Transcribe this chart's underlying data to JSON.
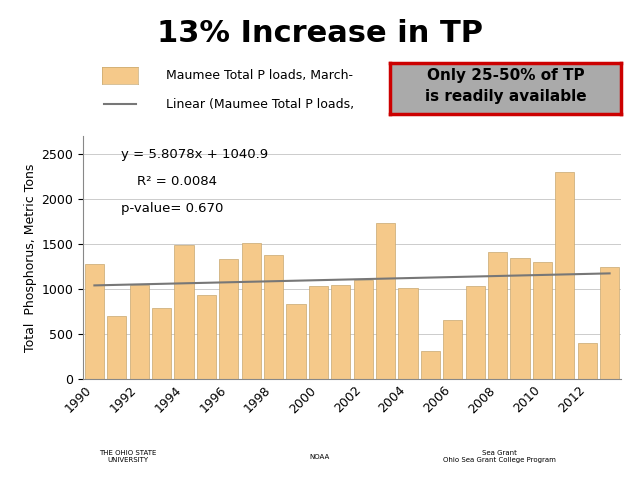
{
  "title": "13% Increase in TP",
  "ylabel": "Total  Phosphorus, Metric Tons",
  "bar_color": "#F5C98A",
  "bar_edgecolor": "#C8A870",
  "years": [
    1990,
    1991,
    1992,
    1993,
    1994,
    1995,
    1996,
    1997,
    1998,
    1999,
    2000,
    2001,
    2002,
    2003,
    2004,
    2005,
    2006,
    2007,
    2008,
    2009,
    2010,
    2011,
    2012,
    2013
  ],
  "values": [
    1280,
    700,
    1040,
    790,
    1490,
    930,
    1330,
    1510,
    1380,
    830,
    1030,
    1050,
    1100,
    1730,
    1010,
    310,
    660,
    1030,
    1410,
    1350,
    1300,
    2300,
    400,
    1250
  ],
  "trend_label": "Linear (Maumee Total P loads,",
  "bar_label": "Maumee Total P loads, March-",
  "equation": "y = 5.8078x + 1040.9",
  "r2": "R² = 0.0084",
  "pvalue": "p-value= 0.670",
  "annotation_text": "Only 25-50% of TP\nis readily available",
  "annotation_bg": "#AAAAAA",
  "annotation_border": "#CC0000",
  "ylim": [
    0,
    2700
  ],
  "yticks": [
    0,
    500,
    1000,
    1500,
    2000,
    2500
  ],
  "line_color": "#777777",
  "slope": 5.8078,
  "intercept": 1040.9,
  "ref_year": 1990,
  "background_color": "#FFFFFF",
  "grid_color": "#CCCCCC"
}
